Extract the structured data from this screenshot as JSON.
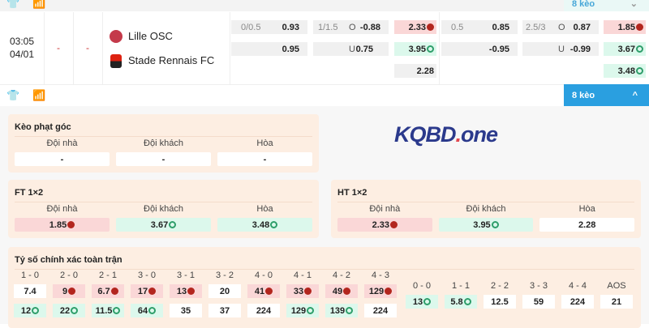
{
  "top_bar": {
    "keo_label": "8 kèo"
  },
  "match": {
    "time": "03:05",
    "date": "04/01",
    "score_home": "-",
    "score_away": "-",
    "home": "Lille OSC",
    "away": "Stade Rennais FC"
  },
  "odds": {
    "ft_handicap": {
      "line": "0/0.5",
      "home": "0.93",
      "away": "0.95"
    },
    "ft_ou": {
      "line": "1/1.5",
      "over_label": "O",
      "over": "-0.88",
      "under_label": "U",
      "under": "0.75"
    },
    "ht_1x2": {
      "home": "2.33",
      "away": "3.95",
      "draw": "2.28"
    },
    "ht_handicap": {
      "line": "0.5",
      "home": "0.85",
      "away": "-0.95"
    },
    "ht_ou": {
      "line": "2.5/3",
      "over_label": "O",
      "over": "0.87",
      "under_label": "U",
      "under": "-0.99"
    },
    "ft_1x2": {
      "home": "1.85",
      "away": "3.67",
      "draw": "3.48"
    }
  },
  "second_bar": {
    "keo_label": "8 kèo"
  },
  "logo": "KQBD.one",
  "corner": {
    "title": "Kèo phạt góc",
    "labels": [
      "Đội nhà",
      "Đội khách",
      "Hòa"
    ],
    "values": [
      "-",
      "-",
      "-"
    ]
  },
  "ft": {
    "title": "FT 1×2",
    "labels": [
      "Đội nhà",
      "Đội khách",
      "Hòa"
    ],
    "values": [
      "1.85",
      "3.67",
      "3.48"
    ],
    "trend": [
      "down",
      "up",
      "up"
    ]
  },
  "ht": {
    "title": "HT 1×2",
    "labels": [
      "Đội nhà",
      "Đội khách",
      "Hòa"
    ],
    "values": [
      "2.33",
      "3.95",
      "2.28"
    ],
    "trend": [
      "down",
      "up",
      "none"
    ]
  },
  "exact": {
    "title": "Tỷ số chính xác toàn trận",
    "cols": [
      {
        "score": "1 - 0",
        "home": "7.4",
        "ht": "none",
        "away": "12",
        "at": "up"
      },
      {
        "score": "2 - 0",
        "home": "9",
        "ht": "down",
        "away": "22",
        "at": "up"
      },
      {
        "score": "2 - 1",
        "home": "6.7",
        "ht": "down",
        "away": "11.5",
        "at": "up"
      },
      {
        "score": "3 - 0",
        "home": "17",
        "ht": "down",
        "away": "64",
        "at": "up"
      },
      {
        "score": "3 - 1",
        "home": "13",
        "ht": "down",
        "away": "35",
        "at": "none"
      },
      {
        "score": "3 - 2",
        "home": "20",
        "ht": "none",
        "away": "37",
        "at": "none"
      },
      {
        "score": "4 - 0",
        "home": "41",
        "ht": "down",
        "away": "224",
        "at": "none"
      },
      {
        "score": "4 - 1",
        "home": "33",
        "ht": "down",
        "away": "129",
        "at": "up"
      },
      {
        "score": "4 - 2",
        "home": "49",
        "ht": "down",
        "away": "139",
        "at": "up"
      },
      {
        "score": "4 - 3",
        "home": "129",
        "ht": "down",
        "away": "224",
        "at": "none"
      }
    ],
    "draws": [
      {
        "score": "0 - 0",
        "value": "13",
        "t": "up"
      },
      {
        "score": "1 - 1",
        "value": "5.8",
        "t": "up"
      },
      {
        "score": "2 - 2",
        "value": "12.5",
        "t": "none"
      },
      {
        "score": "3 - 3",
        "value": "59",
        "t": "none"
      },
      {
        "score": "4 - 4",
        "value": "224",
        "t": "none"
      },
      {
        "score": "AOS",
        "value": "21",
        "t": "none"
      }
    ]
  },
  "colors": {
    "down": "#b3261e",
    "up": "#2e9e6a",
    "accent": "#2a9fe0"
  }
}
